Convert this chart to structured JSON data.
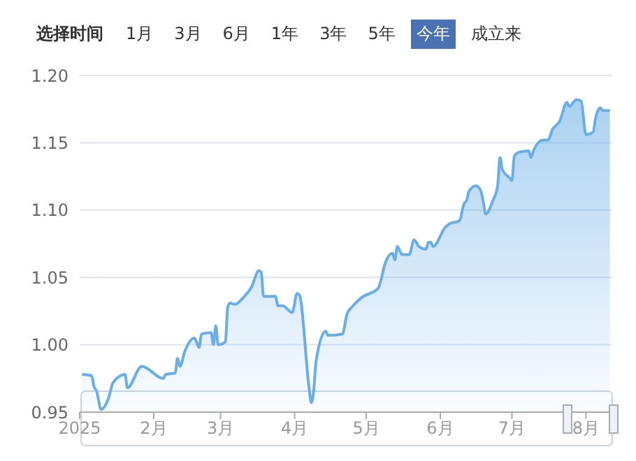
{
  "chart_data": {
    "type": "area",
    "annotations": [
      "选择时间",
      "1月",
      "3月",
      "6月",
      "1年",
      "3年",
      "5年",
      "今年",
      "成立来"
    ],
    "x": [
      "2025-01-02",
      "2025-01-06",
      "2025-01-07",
      "2025-01-08",
      "2025-01-10",
      "2025-01-13",
      "2025-01-15",
      "2025-01-20",
      "2025-01-21",
      "2025-01-27",
      "2025-02-05",
      "2025-02-06",
      "2025-02-10",
      "2025-02-11",
      "2025-02-12",
      "2025-02-14",
      "2025-02-18",
      "2025-02-20",
      "2025-02-21",
      "2025-02-25",
      "2025-02-26",
      "2025-02-27",
      "2025-02-28",
      "2025-03-03",
      "2025-03-04",
      "2025-03-05",
      "2025-03-07",
      "2025-03-10",
      "2025-03-12",
      "2025-03-14",
      "2025-03-17",
      "2025-03-18",
      "2025-03-19",
      "2025-03-24",
      "2025-03-25",
      "2025-03-27",
      "2025-03-31",
      "2025-04-02",
      "2025-04-03",
      "2025-04-07",
      "2025-04-08",
      "2025-04-09",
      "2025-04-10",
      "2025-04-14",
      "2025-04-15",
      "2025-04-21",
      "2025-04-23",
      "2025-04-25",
      "2025-04-29",
      "2025-05-06",
      "2025-05-07",
      "2025-05-09",
      "2025-05-12",
      "2025-05-13",
      "2025-05-14",
      "2025-05-16",
      "2025-05-19",
      "2025-05-21",
      "2025-05-23",
      "2025-05-26",
      "2025-05-27",
      "2025-05-28",
      "2025-05-29",
      "2025-06-03",
      "2025-06-05",
      "2025-06-09",
      "2025-06-11",
      "2025-06-12",
      "2025-06-13",
      "2025-06-16",
      "2025-06-18",
      "2025-06-19",
      "2025-06-20",
      "2025-06-23",
      "2025-06-25",
      "2025-06-26",
      "2025-06-27",
      "2025-06-30",
      "2025-07-01",
      "2025-07-02",
      "2025-07-04",
      "2025-07-08",
      "2025-07-09",
      "2025-07-10",
      "2025-07-14",
      "2025-07-16",
      "2025-07-18",
      "2025-07-21",
      "2025-07-24",
      "2025-07-25",
      "2025-07-28",
      "2025-07-30",
      "2025-08-01",
      "2025-08-04",
      "2025-08-05",
      "2025-08-07",
      "2025-08-08",
      "2025-08-11"
    ],
    "series": [
      {
        "color": "#6aaee8",
        "values": [
          0.978,
          0.977,
          0.969,
          0.966,
          0.952,
          0.96,
          0.972,
          0.978,
          0.968,
          0.984,
          0.975,
          0.978,
          0.979,
          0.99,
          0.984,
          0.995,
          1.005,
          0.998,
          1.008,
          1.009,
          1.0,
          1.014,
          1.0,
          1.002,
          1.028,
          1.031,
          1.03,
          1.034,
          1.038,
          1.043,
          1.055,
          1.054,
          1.036,
          1.036,
          1.029,
          1.029,
          1.024,
          1.038,
          1.037,
          0.969,
          0.957,
          0.966,
          0.988,
          1.01,
          1.007,
          1.008,
          1.023,
          1.028,
          1.035,
          1.042,
          1.047,
          1.061,
          1.068,
          1.063,
          1.073,
          1.067,
          1.067,
          1.078,
          1.073,
          1.071,
          1.076,
          1.076,
          1.073,
          1.087,
          1.09,
          1.092,
          1.105,
          1.107,
          1.114,
          1.118,
          1.114,
          1.106,
          1.097,
          1.107,
          1.118,
          1.139,
          1.13,
          1.124,
          1.122,
          1.14,
          1.143,
          1.144,
          1.139,
          1.144,
          1.152,
          1.152,
          1.16,
          1.166,
          1.18,
          1.177,
          1.182,
          1.181,
          1.156,
          1.158,
          1.168,
          1.176,
          1.174,
          1.174
        ]
      }
    ],
    "xlim": [
      "2025-01-01",
      "2025-08-12"
    ],
    "xticks": [
      {
        "value": "2025-01-01",
        "label": "2025"
      },
      {
        "value": "2025-02-01",
        "label": "2月"
      },
      {
        "value": "2025-03-01",
        "label": "3月"
      },
      {
        "value": "2025-04-01",
        "label": "4月"
      },
      {
        "value": "2025-05-01",
        "label": "5月"
      },
      {
        "value": "2025-06-01",
        "label": "6月"
      },
      {
        "value": "2025-07-01",
        "label": "7月"
      },
      {
        "value": "2025-08-01",
        "label": "8月"
      }
    ],
    "ylim": [
      0.95,
      1.2
    ],
    "yticks": [
      {
        "value": 0.95,
        "label": "0.95"
      },
      {
        "value": 1.0,
        "label": "1.00"
      },
      {
        "value": 1.05,
        "label": "1.05"
      },
      {
        "value": 1.1,
        "label": "1.10"
      },
      {
        "value": 1.15,
        "label": "1.15"
      },
      {
        "value": 1.2,
        "label": "1.20"
      }
    ],
    "grid": "y"
  }
}
